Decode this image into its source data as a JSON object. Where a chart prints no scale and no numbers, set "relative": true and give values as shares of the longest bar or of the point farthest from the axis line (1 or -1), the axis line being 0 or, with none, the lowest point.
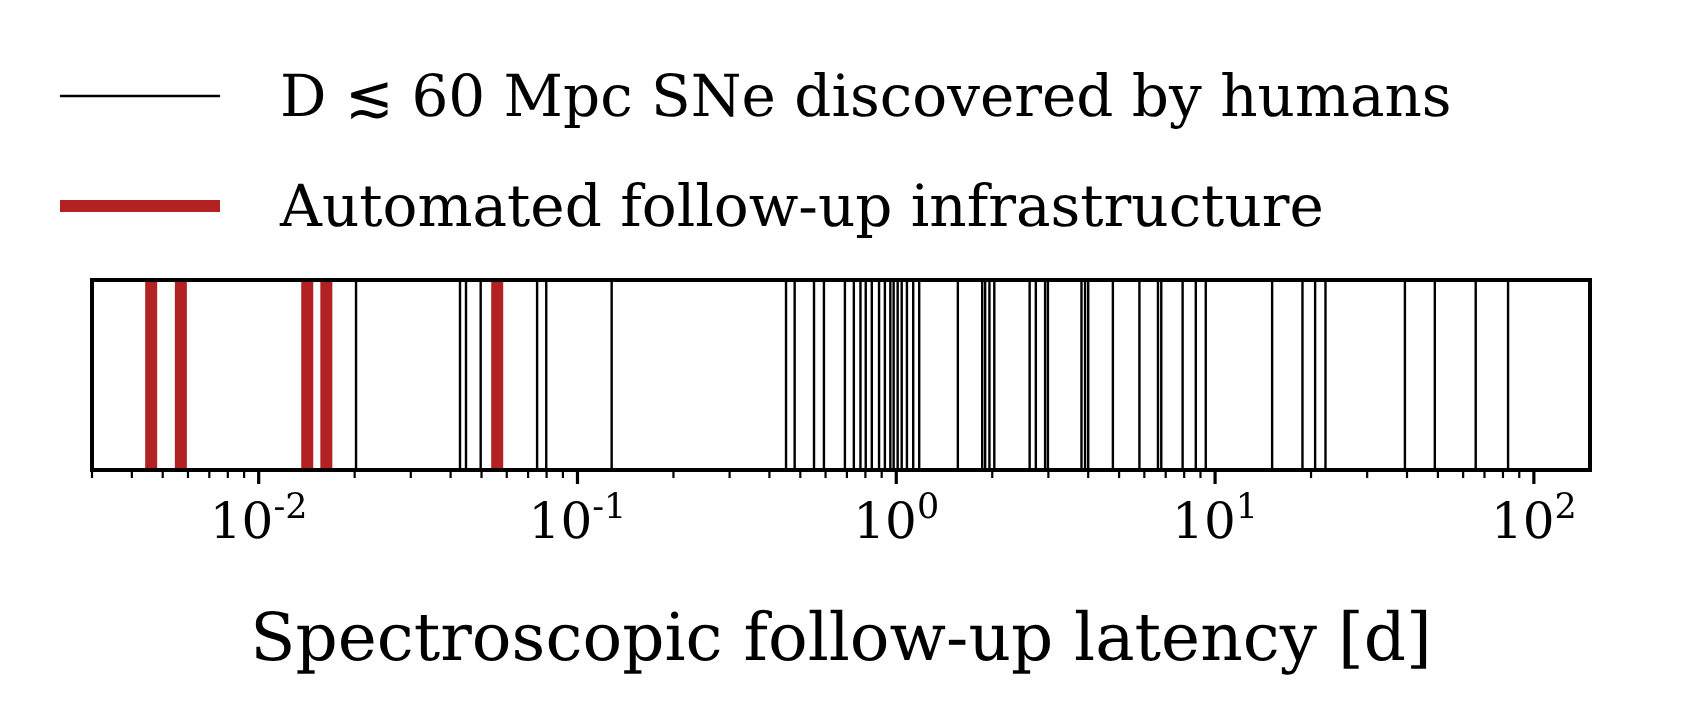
{
  "chart_data": {
    "type": "bar",
    "relative": true,
    "xlabel": "Spectroscopic follow-up latency [d]",
    "log": "x",
    "legend": "top",
    "xlim": [
      0.003,
      150
    ],
    "xticks": [
      {
        "value": 0.003,
        "label": null
      },
      {
        "value": 0.004,
        "label": null
      },
      {
        "value": 0.005,
        "label": null
      },
      {
        "value": 0.006,
        "label": null
      },
      {
        "value": 0.007,
        "label": null
      },
      {
        "value": 0.008,
        "label": null
      },
      {
        "value": 0.009,
        "label": null
      },
      {
        "value": 0.01,
        "label": "10$^{-2}$"
      },
      {
        "value": 0.02,
        "label": null
      },
      {
        "value": 0.03,
        "label": null
      },
      {
        "value": 0.04,
        "label": null
      },
      {
        "value": 0.05,
        "label": null
      },
      {
        "value": 0.06,
        "label": null
      },
      {
        "value": 0.07,
        "label": null
      },
      {
        "value": 0.08,
        "label": null
      },
      {
        "value": 0.09,
        "label": null
      },
      {
        "value": 0.1,
        "label": "10$^{-1}$"
      },
      {
        "value": 0.2,
        "label": null
      },
      {
        "value": 0.3,
        "label": null
      },
      {
        "value": 0.4,
        "label": null
      },
      {
        "value": 0.5,
        "label": null
      },
      {
        "value": 0.6,
        "label": null
      },
      {
        "value": 0.7,
        "label": null
      },
      {
        "value": 0.8,
        "label": null
      },
      {
        "value": 0.9,
        "label": null
      },
      {
        "value": 1,
        "label": "10$^{0}$"
      },
      {
        "value": 2,
        "label": null
      },
      {
        "value": 3,
        "label": null
      },
      {
        "value": 4,
        "label": null
      },
      {
        "value": 5,
        "label": null
      },
      {
        "value": 6,
        "label": null
      },
      {
        "value": 7,
        "label": null
      },
      {
        "value": 8,
        "label": null
      },
      {
        "value": 9,
        "label": null
      },
      {
        "value": 10,
        "label": "10$^{1}$"
      },
      {
        "value": 20,
        "label": null
      },
      {
        "value": 30,
        "label": null
      },
      {
        "value": 40,
        "label": null
      },
      {
        "value": 50,
        "label": null
      },
      {
        "value": 60,
        "label": null
      },
      {
        "value": 70,
        "label": null
      },
      {
        "value": 80,
        "label": null
      },
      {
        "value": 90,
        "label": null
      },
      {
        "value": 100,
        "label": "10$^{2}$"
      }
    ],
    "series": [
      {
        "name": "D ≲ 60 Mpc SNe discovered by humans",
        "color": "#000000",
        "x": [
          0.0202,
          0.0428,
          0.0447,
          0.0497,
          0.0747,
          0.0798,
          0.128,
          0.451,
          0.48,
          0.552,
          0.593,
          0.69,
          0.736,
          0.772,
          0.802,
          0.838,
          0.883,
          0.921,
          0.958,
          0.981,
          1.01,
          1.04,
          1.08,
          1.13,
          1.18,
          1.56,
          1.86,
          1.9,
          1.96,
          2.03,
          2.62,
          2.74,
          2.93,
          2.99,
          3.81,
          3.91,
          4.0,
          4.78,
          5.79,
          6.62,
          6.78,
          7.91,
          8.7,
          9.35,
          15.1,
          18.8,
          20.6,
          22.2,
          39.4,
          48.9,
          65.7,
          83
        ],
        "values": [
          1,
          1,
          1,
          1,
          1,
          1,
          1,
          1,
          1,
          1,
          1,
          1,
          1,
          1,
          1,
          1,
          1,
          1,
          1,
          1,
          1,
          1,
          1,
          1,
          1,
          1,
          1,
          1,
          1,
          1,
          1,
          1,
          1,
          1,
          1,
          1,
          1,
          1,
          1,
          1,
          1,
          1,
          1,
          1,
          1,
          1,
          1,
          1,
          1,
          1,
          1,
          1
        ]
      },
      {
        "name": "Automated follow-up infrastructure",
        "color": "#b22222",
        "x": [
          0.0046,
          0.0057,
          0.0142,
          0.0163,
          0.056
        ],
        "values": [
          1,
          1,
          1,
          1,
          1
        ]
      }
    ]
  }
}
